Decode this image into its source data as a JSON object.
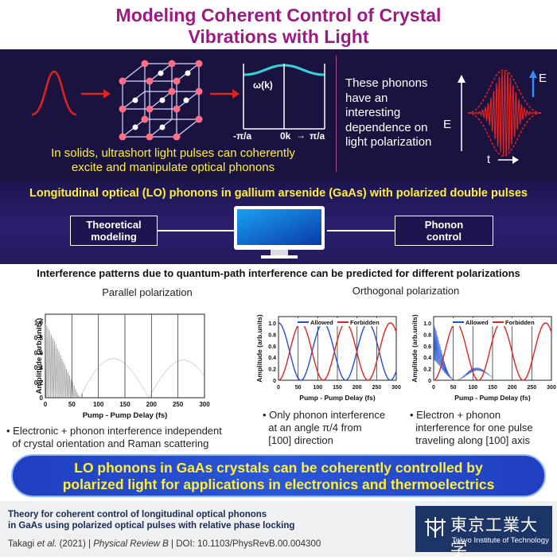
{
  "title": {
    "line1": "Modeling Coherent Control of Crystal",
    "line2": "Vibrations with Light"
  },
  "top": {
    "omega_label": "ω(k)",
    "axis_left": "-π/a",
    "axis_mid": "0k",
    "axis_right": "π/a",
    "caption_line1": "In solids, ultrashort light pulses can coherently",
    "caption_line2": "excite and manipulate optical phonons",
    "phonon_text": [
      "These phonons",
      "have an",
      "interesting",
      "dependence on",
      "light polarization"
    ],
    "wave_e_label": "E",
    "wave_e_axis": "E",
    "wave_t_axis": "t"
  },
  "middle": {
    "heading": "Longitudinal optical (LO) phonons in gallium arsenide (GaAs) with polarized double pulses",
    "box_left": [
      "Theoretical",
      "modeling"
    ],
    "box_right": [
      "Phonon",
      "control"
    ]
  },
  "bottom": {
    "heading": "Interference patterns due to quantum-path interference can be predicted for different polarizations",
    "parallel_title": "Parallel polarization",
    "orthogonal_title": "Orthogonal polarization",
    "y_label": "Amplitude (arb.units)",
    "x_label": "Pump - Pump Delay (fs)",
    "legend_allowed": "Allowed",
    "legend_forbidden": "Forbidden",
    "x_ticks": [
      "0",
      "50",
      "100",
      "150",
      "200",
      "250",
      "300"
    ],
    "y_ticks": [
      "0",
      "0.2",
      "0.4",
      "0.6",
      "0.8",
      "1.0"
    ],
    "caption1": [
      "• Electronic + phonon interference independent",
      "  of crystal orientation and Raman scattering"
    ],
    "caption2": [
      "• Only phonon interference",
      "  at an angle π/4 from",
      "  [100] direction"
    ],
    "caption3": [
      "• Electron + phonon",
      "  interference for one pulse",
      "  traveling along [100] axis"
    ]
  },
  "banner": {
    "line1": "LO phonons in GaAs crystals can be coherently controlled by",
    "line2": "polarized light for applications in electronics and thermoelectrics"
  },
  "footer": {
    "paper_line1": "Theory for coherent control of longitudinal optical phonons",
    "paper_line2": "in GaAs using polarized optical pulses with relative phase locking",
    "citation_author": "Takagi",
    "citation_etal": "et al.",
    "citation_year": "(2021)",
    "citation_journal": "Physical Review B",
    "citation_doi": "DOI: 10.1103/PhysRevB.00.004300",
    "logo_jp": "東京工業大学",
    "logo_en": "Tokyo Institute of Technology"
  },
  "colors": {
    "title": "#9c1b83",
    "highlight": "#ffef3a",
    "allowed": "#1f4fd6",
    "forbidden": "#e0231f",
    "arrow_red": "#e0231f"
  }
}
